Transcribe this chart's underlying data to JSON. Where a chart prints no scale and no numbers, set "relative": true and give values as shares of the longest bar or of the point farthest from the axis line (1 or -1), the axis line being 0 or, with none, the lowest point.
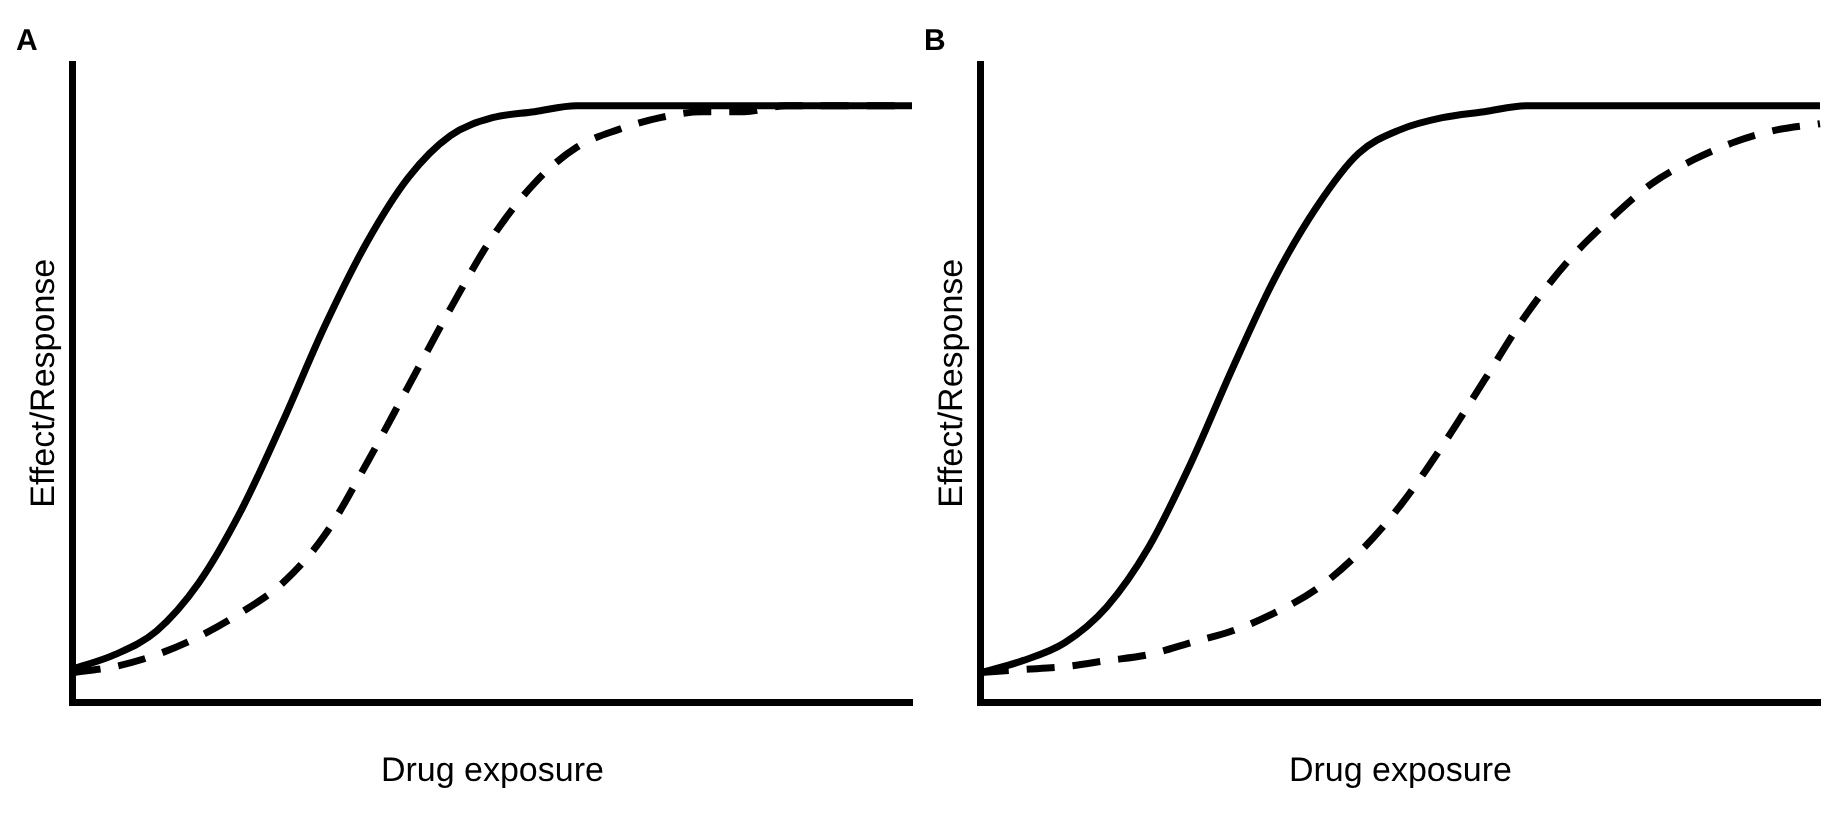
{
  "chart_data": [
    {
      "type": "line",
      "title": "A",
      "xlabel": "Drug exposure",
      "ylabel": "Effect/Response",
      "relative": true,
      "legend": false,
      "grid": false,
      "marker": "none",
      "categories": [
        null,
        null,
        null,
        null,
        null,
        null,
        null,
        null,
        null,
        null,
        null,
        null,
        null,
        null,
        null,
        null,
        null,
        null,
        null,
        null,
        null
      ],
      "series": [
        {
          "color": "#000000",
          "line_style": "solid",
          "values": [
            0.056,
            0.08,
            0.12,
            0.2,
            0.32,
            0.47,
            0.63,
            0.77,
            0.88,
            0.95,
            0.98,
            0.99,
            1,
            1,
            1,
            1,
            1,
            1,
            1,
            1,
            1
          ]
        },
        {
          "color": "#000000",
          "line_style": "dashed",
          "values": [
            0.05,
            0.06,
            0.08,
            0.11,
            0.15,
            0.2,
            0.28,
            0.4,
            0.53,
            0.66,
            0.78,
            0.87,
            0.93,
            0.96,
            0.98,
            0.99,
            0.99,
            1,
            1,
            1,
            1
          ]
        }
      ]
    },
    {
      "type": "line",
      "title": "B",
      "xlabel": "Drug exposure",
      "ylabel": "Effect/Response",
      "relative": true,
      "legend": false,
      "grid": false,
      "marker": "none",
      "categories": [
        null,
        null,
        null,
        null,
        null,
        null,
        null,
        null,
        null,
        null,
        null,
        null,
        null,
        null,
        null,
        null,
        null,
        null,
        null,
        null,
        null
      ],
      "series": [
        {
          "color": "#000000",
          "line_style": "solid",
          "values": [
            0.05,
            0.07,
            0.1,
            0.16,
            0.26,
            0.4,
            0.56,
            0.71,
            0.83,
            0.92,
            0.96,
            0.98,
            0.99,
            1,
            1,
            1,
            1,
            1,
            1,
            1,
            1
          ]
        },
        {
          "color": "#000000",
          "line_style": "dashed",
          "values": [
            0.05,
            0.055,
            0.06,
            0.07,
            0.08,
            0.1,
            0.12,
            0.15,
            0.19,
            0.25,
            0.33,
            0.43,
            0.54,
            0.65,
            0.74,
            0.81,
            0.87,
            0.91,
            0.94,
            0.96,
            0.97
          ]
        }
      ]
    }
  ]
}
